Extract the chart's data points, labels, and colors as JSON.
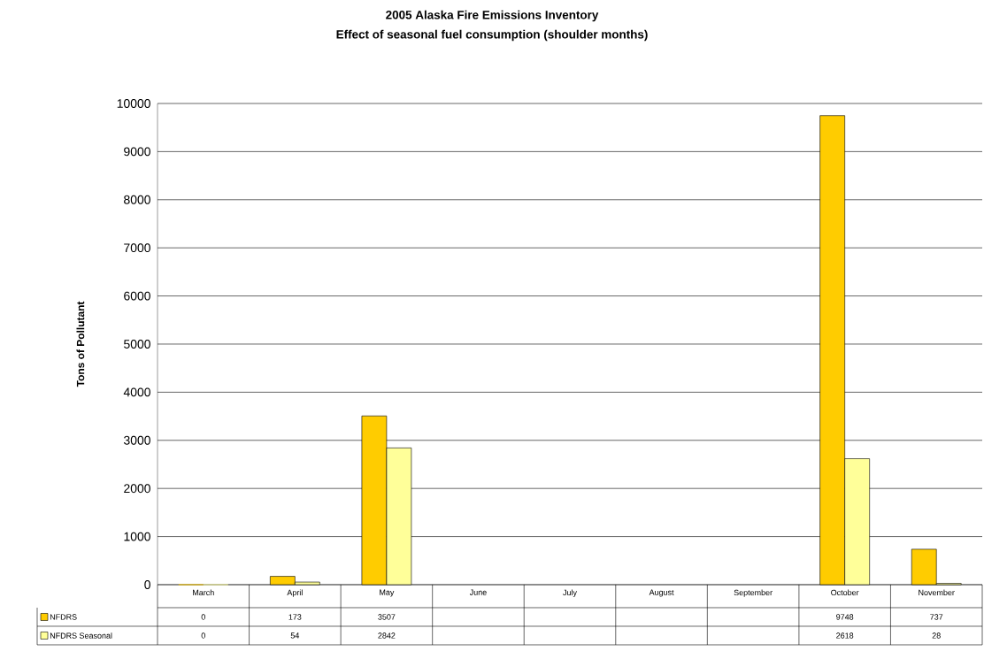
{
  "chart_data": {
    "type": "bar",
    "title": "2005 Alaska Fire Emissions Inventory",
    "subtitle": "Effect of seasonal fuel consumption (shoulder months)",
    "ylabel": "Tons of Pollutant",
    "categories": [
      "March",
      "April",
      "May",
      "June",
      "July",
      "August",
      "September",
      "October",
      "November"
    ],
    "series": [
      {
        "name": "NFDRS",
        "color": "#ffcc00",
        "values": [
          0,
          173,
          3507,
          null,
          null,
          null,
          null,
          9748,
          737
        ]
      },
      {
        "name": "NFDRS Seasonal",
        "color": "#ffff99",
        "values": [
          0,
          54,
          2842,
          null,
          null,
          null,
          null,
          2618,
          28
        ]
      }
    ],
    "ylim": [
      0,
      10000
    ],
    "yticks": [
      0,
      1000,
      2000,
      3000,
      4000,
      5000,
      6000,
      7000,
      8000,
      9000,
      10000
    ],
    "grid": "y",
    "legend": "bottom",
    "data_labels": true
  }
}
